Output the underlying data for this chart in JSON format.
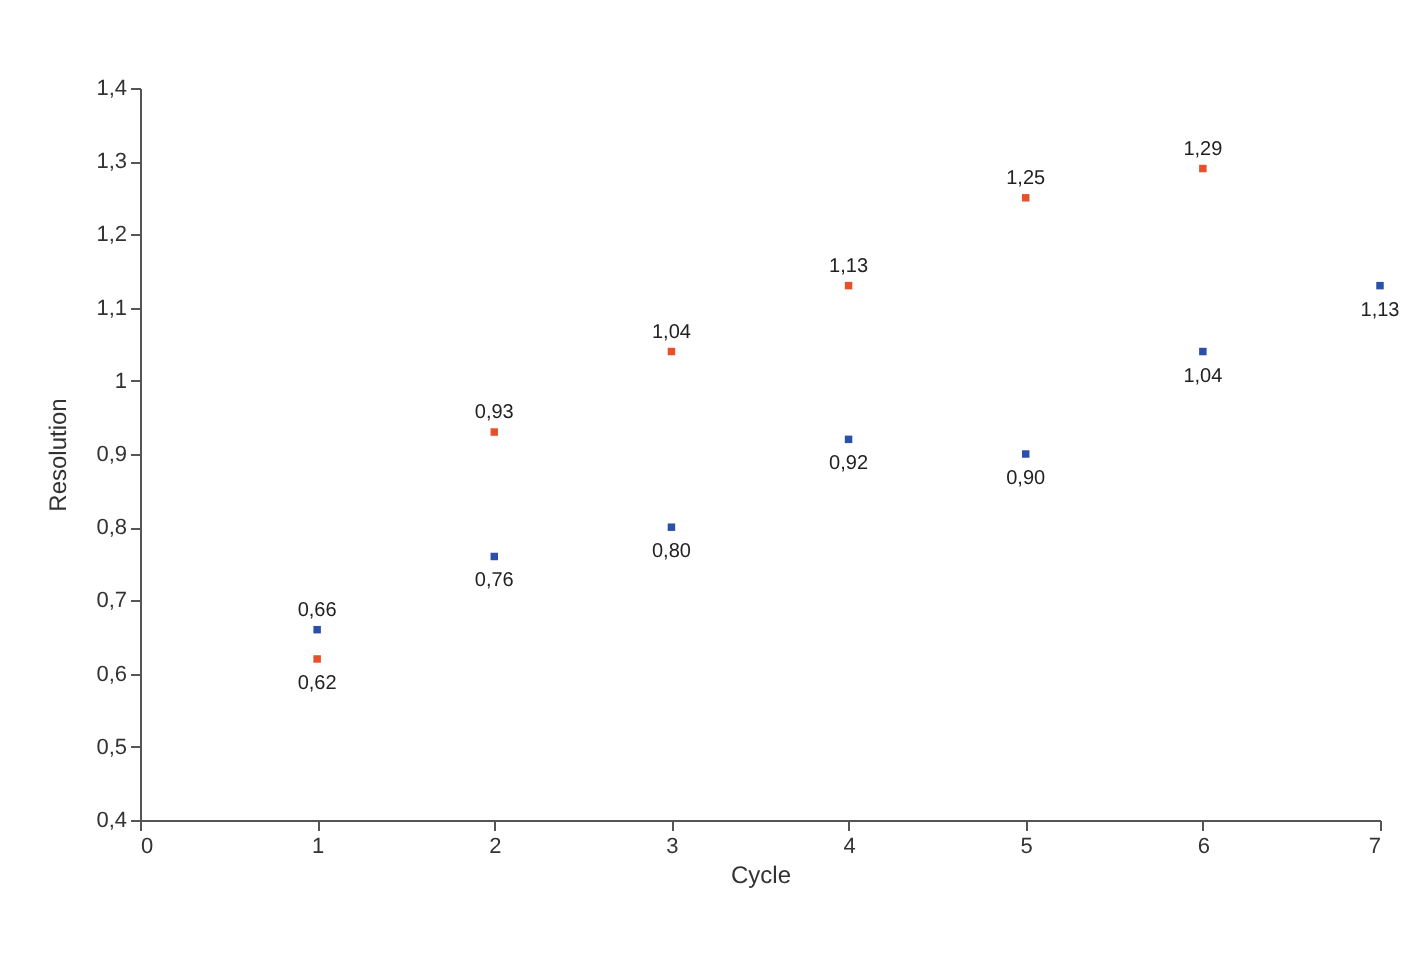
{
  "chart_data": {
    "type": "scatter",
    "xlabel": "Cycle",
    "ylabel": "Resolution",
    "series": [
      {
        "color": "#e8502a",
        "x": [
          1,
          2,
          3,
          4,
          5,
          6
        ],
        "values": [
          0.62,
          0.93,
          1.04,
          1.13,
          1.25,
          1.29
        ],
        "value_labels": [
          "0,62",
          "0,93",
          "1,04",
          "1,13",
          "1,25",
          "1,29"
        ]
      },
      {
        "color": "#2b50a8",
        "x": [
          1,
          2,
          3,
          4,
          5,
          6,
          7
        ],
        "values": [
          0.66,
          0.76,
          0.8,
          0.92,
          0.9,
          1.04,
          1.13
        ],
        "value_labels": [
          "0,66",
          "0,76",
          "0,80",
          "0,92",
          "0,90",
          "1,04",
          "1,13"
        ]
      }
    ],
    "xlim": [
      0,
      7
    ],
    "xticks": [
      0,
      1,
      2,
      3,
      4,
      5,
      6,
      7
    ],
    "ylim": [
      0.4,
      1.4
    ],
    "yticks": [
      {
        "value": 0.4,
        "label": "0,4"
      },
      {
        "value": 0.5,
        "label": "0,5"
      },
      {
        "value": 0.6,
        "label": "0,6"
      },
      {
        "value": 0.7,
        "label": "0,7"
      },
      {
        "value": 0.8,
        "label": "0,8"
      },
      {
        "value": 0.9,
        "label": "0,9"
      },
      1,
      {
        "value": 1.1,
        "label": "1,1"
      },
      {
        "value": 1.2,
        "label": "1,2"
      },
      {
        "value": 1.3,
        "label": "1,3"
      },
      {
        "value": 1.4,
        "label": "1,4"
      }
    ],
    "grid": false,
    "marker": "square"
  }
}
